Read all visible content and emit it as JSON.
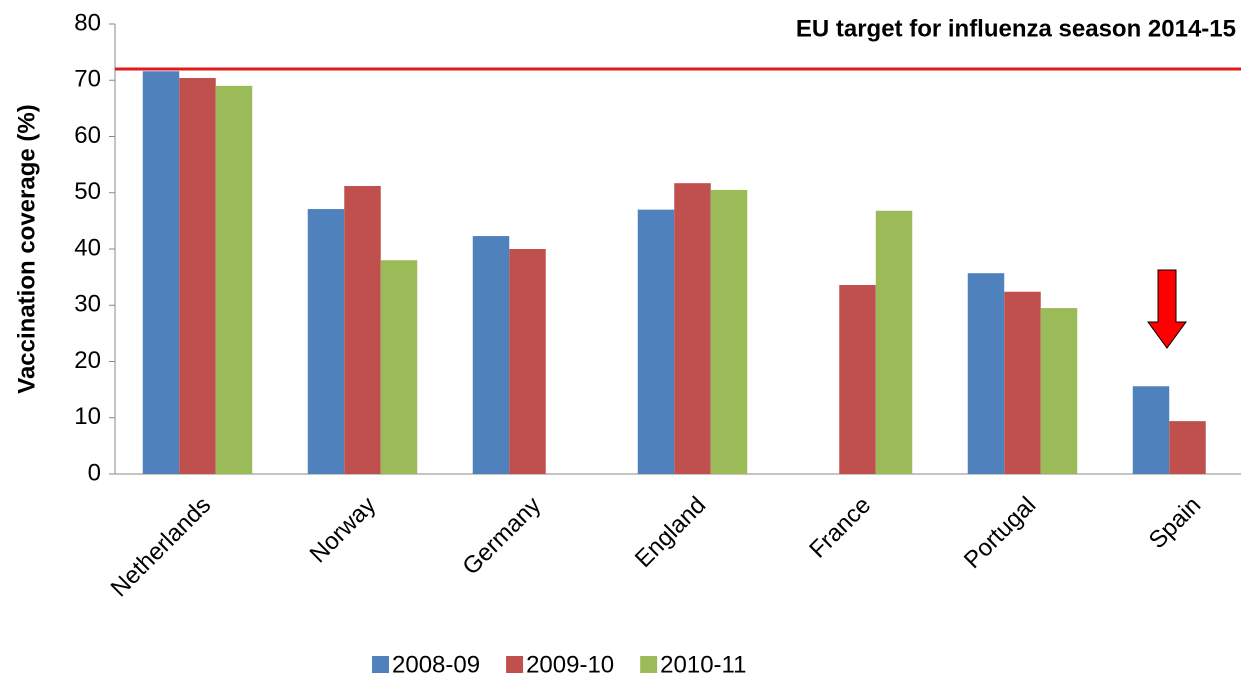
{
  "chart_data": {
    "type": "bar",
    "y_axis_label": "Vaccination coverage (%)",
    "annotation": "EU target for influenza season 2014-15",
    "target": 72,
    "target_color": "#e31a1c",
    "categories": [
      "Netherlands",
      "Norway",
      "Germany",
      "England",
      "France",
      "Portugal",
      "Spain"
    ],
    "series": [
      {
        "name": "2008-09",
        "color": "#4f81bd",
        "values": [
          71.6,
          47.1,
          42.3,
          47,
          null,
          35.7,
          15.6
        ]
      },
      {
        "name": "2009-10",
        "color": "#c0504d",
        "values": [
          70.4,
          51.2,
          40,
          51.7,
          33.6,
          32.4,
          9.4
        ]
      },
      {
        "name": "2010-11",
        "color": "#9bbb59",
        "values": [
          69,
          38,
          null,
          50.5,
          46.8,
          29.5,
          null
        ]
      }
    ],
    "ylim": [
      0,
      80
    ],
    "yticks": [
      0,
      10,
      20,
      30,
      40,
      50,
      60,
      70,
      80
    ],
    "grid": false,
    "legend": "bottom"
  }
}
